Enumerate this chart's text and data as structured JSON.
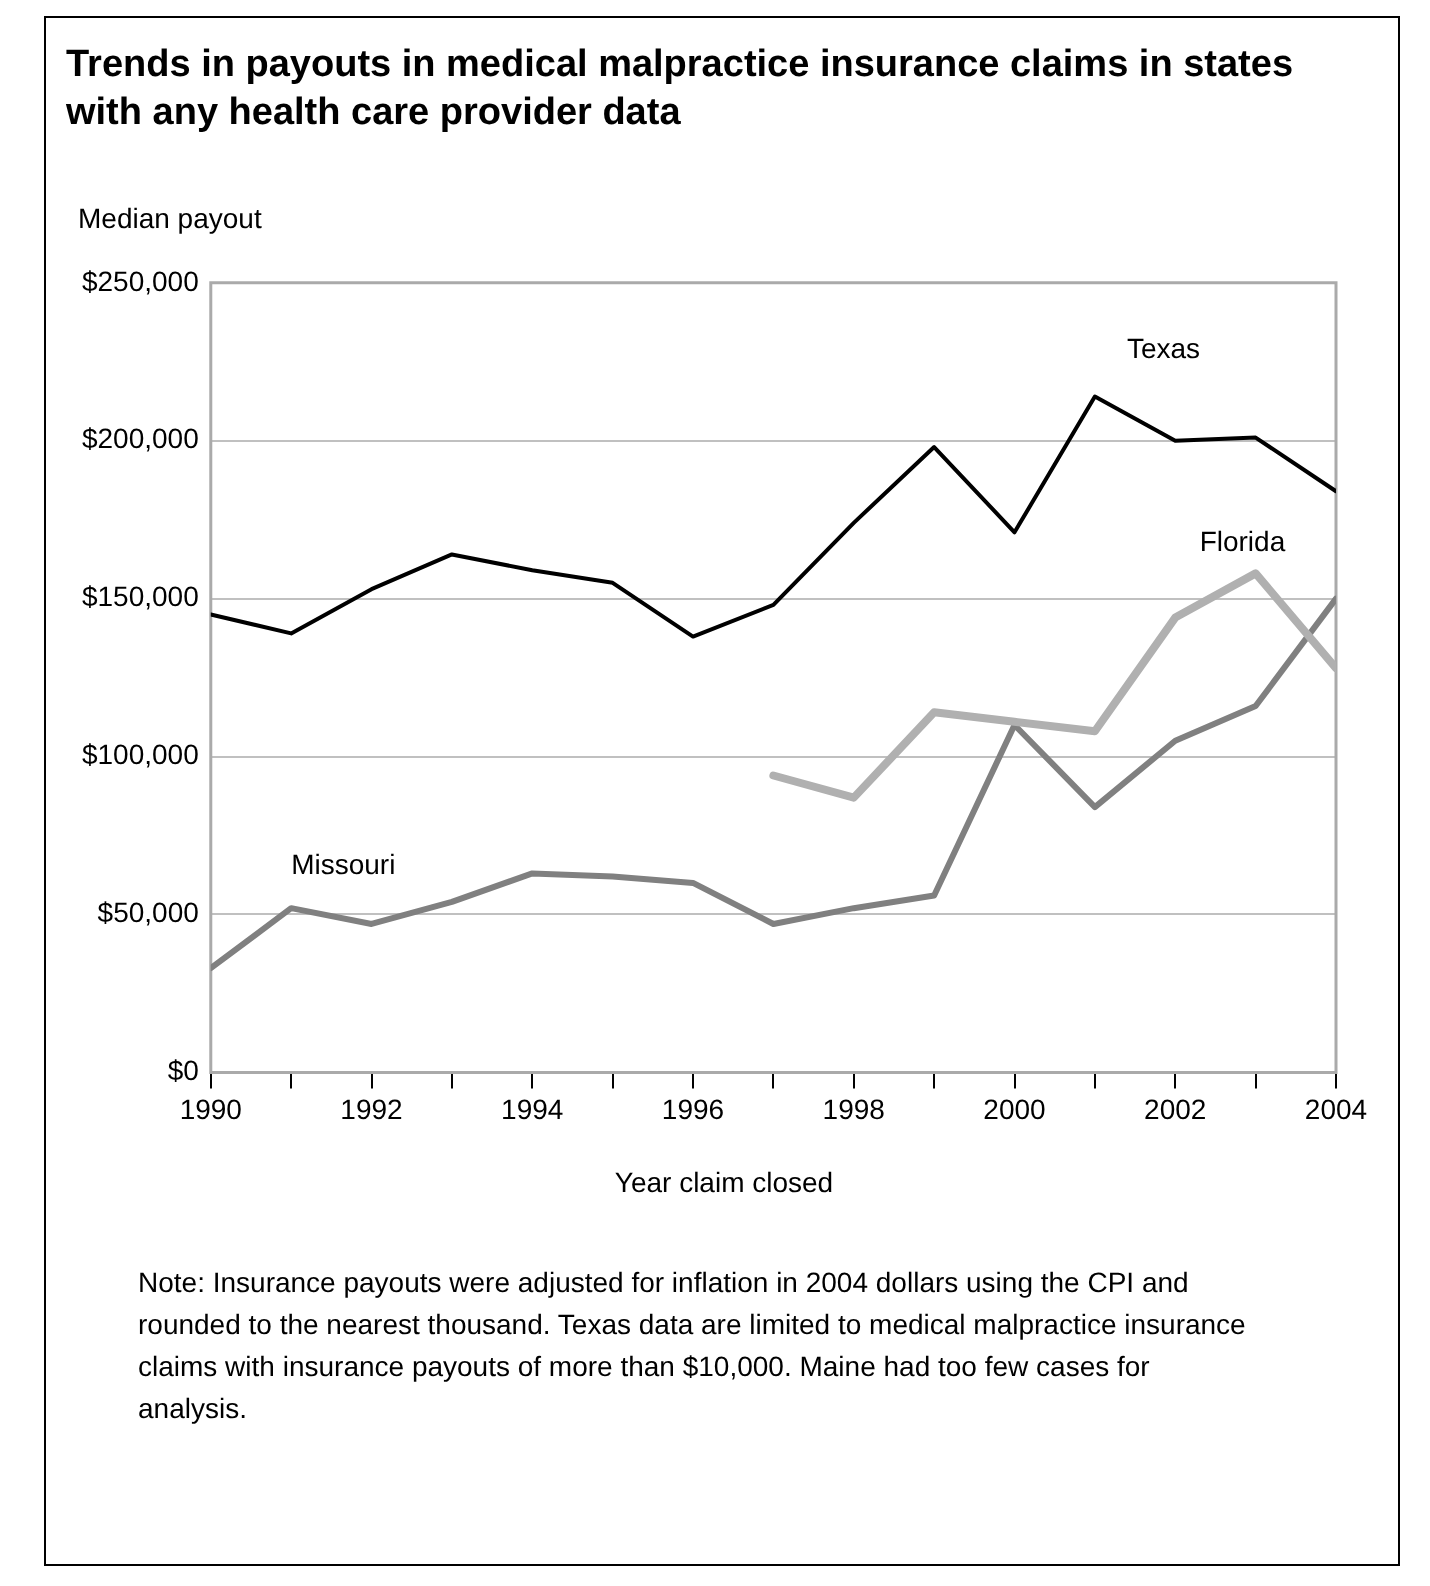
{
  "chart_data": {
    "type": "line",
    "title": "Trends in payouts in medical malpractice insurance claims in states with any health care provider data",
    "xlabel": "Year claim closed",
    "ylabel": "Median payout",
    "x": [
      1990,
      1991,
      1992,
      1993,
      1994,
      1995,
      1996,
      1997,
      1998,
      1999,
      2000,
      2001,
      2002,
      2003,
      2004
    ],
    "series": [
      {
        "name": "Texas",
        "color": "#000000",
        "values": [
          145000,
          139000,
          153000,
          164000,
          159000,
          155000,
          138000,
          148000,
          174000,
          198000,
          171000,
          214000,
          200000,
          201000,
          184000
        ]
      },
      {
        "name": "Florida",
        "color": "#b0b0b0",
        "values": [
          null,
          null,
          null,
          null,
          null,
          null,
          null,
          94000,
          87000,
          114000,
          111000,
          108000,
          144000,
          158000,
          128000
        ]
      },
      {
        "name": "Missouri",
        "color": "#808080",
        "values": [
          33000,
          52000,
          47000,
          54000,
          63000,
          62000,
          60000,
          47000,
          52000,
          56000,
          110000,
          84000,
          105000,
          116000,
          150000
        ]
      }
    ],
    "xlim": [
      1990,
      2004
    ],
    "xticks": [
      1990,
      {
        "value": 1991,
        "label": null
      },
      1992,
      {
        "value": 1993,
        "label": null
      },
      1994,
      {
        "value": 1995,
        "label": null
      },
      1996,
      {
        "value": 1997,
        "label": null
      },
      1998,
      {
        "value": 1999,
        "label": null
      },
      2000,
      {
        "value": 2001,
        "label": null
      },
      2002,
      {
        "value": 2003,
        "label": null
      },
      2004
    ],
    "ylim": [
      0,
      250000
    ],
    "yticks": [
      {
        "value": 0,
        "label": "$0"
      },
      {
        "value": 50000,
        "label": "$50,000"
      },
      {
        "value": 100000,
        "label": "$100,000"
      },
      {
        "value": 150000,
        "label": "$150,000"
      },
      {
        "value": 200000,
        "label": "$200,000"
      },
      {
        "value": 250000,
        "label": "$250,000"
      }
    ],
    "grid": "y",
    "legend": false,
    "marker": "none",
    "line_style": "solid",
    "annotations": [
      "Note: Insurance payouts were adjusted for inflation in 2004 dollars using the CPI and rounded to the nearest thousand. Texas data are limited to medical malpractice insurance claims with insurance payouts of more than $10,000. Maine had too few cases for analysis."
    ]
  }
}
